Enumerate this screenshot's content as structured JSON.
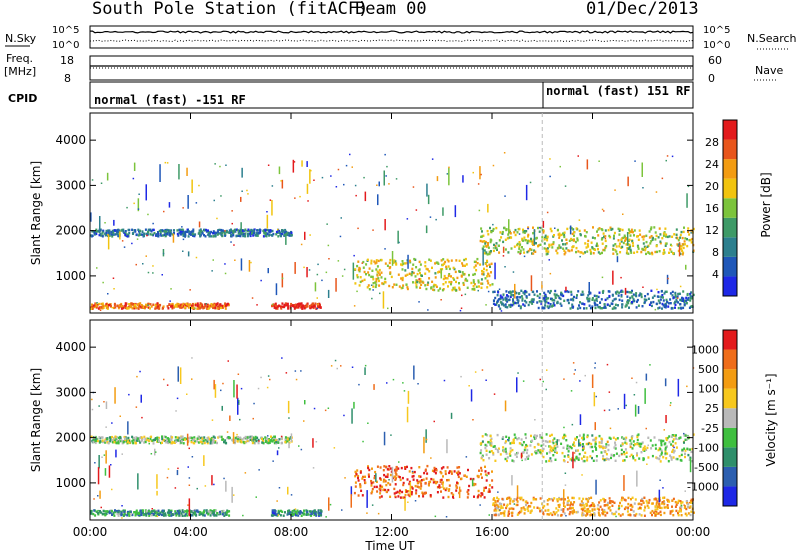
{
  "header": {
    "station": "South Pole Station (fitACF)",
    "beam": "Beam 00",
    "date": "01/Dec/2013"
  },
  "top_panels": {
    "nsky_label": "N.Sky",
    "nsearch_label": "N.Search",
    "count_ticks": [
      "10^5",
      "10^0"
    ],
    "freq_label_1": "Freq.",
    "freq_label_2": "[MHz]",
    "freq_ticks": [
      "18",
      "8"
    ],
    "nave_label": "Nave",
    "nave_ticks": [
      "60",
      "0"
    ],
    "cpid_label": "CPID",
    "cpid_segments": [
      {
        "label": "normal (fast) -151 RF",
        "start_hour": 0
      },
      {
        "label": "normal (fast) 151 RF",
        "start_hour": 18
      }
    ]
  },
  "chart_data": [
    {
      "type": "heatmap",
      "name": "power",
      "ylabel": "Slant Range [km]",
      "xlabel": "",
      "xlim": [
        0,
        24
      ],
      "ylim": [
        180,
        4600
      ],
      "yticks": [
        "1000",
        "2000",
        "3000",
        "4000"
      ],
      "colorbar": {
        "label": "Power [dB]",
        "ticks": [
          "4",
          "8",
          "12",
          "16",
          "20",
          "24",
          "28"
        ],
        "colors": [
          "#1e28e6",
          "#1f57b8",
          "#2c7f8e",
          "#3e9a67",
          "#7cc43c",
          "#f1c40f",
          "#f39c12",
          "#e8561c",
          "#e31a1c"
        ]
      },
      "echo_bands": [
        {
          "t0": 0.0,
          "t1": 5.5,
          "r0": 300,
          "r1": 420,
          "level": 0.8
        },
        {
          "t0": 7.2,
          "t1": 9.2,
          "r0": 300,
          "r1": 420,
          "level": 0.95
        },
        {
          "t0": 0.0,
          "t1": 8.0,
          "r0": 1900,
          "r1": 2050,
          "level": 0.25
        },
        {
          "t0": 10.5,
          "t1": 16.0,
          "r0": 700,
          "r1": 1400,
          "level": 0.6
        },
        {
          "t0": 15.5,
          "t1": 24.0,
          "r0": 1500,
          "r1": 2100,
          "level": 0.55
        },
        {
          "t0": 16.0,
          "t1": 24.0,
          "r0": 300,
          "r1": 700,
          "level": 0.25
        }
      ]
    },
    {
      "type": "heatmap",
      "name": "velocity",
      "ylabel": "Slant Range [km]",
      "xlabel": "Time UT",
      "xlim": [
        0,
        24
      ],
      "ylim": [
        180,
        4600
      ],
      "yticks": [
        "1000",
        "2000",
        "3000",
        "4000"
      ],
      "xticks": [
        "00:00",
        "04:00",
        "08:00",
        "12:00",
        "16:00",
        "20:00",
        "00:00"
      ],
      "colorbar": {
        "label": "Velocity [m s⁻¹]",
        "ticks": [
          "1000",
          "500",
          "100",
          "25",
          "-25",
          "-100",
          "-500",
          "-1000"
        ],
        "colors": [
          "#1e28e6",
          "#2c5fb0",
          "#2f8f6b",
          "#3fbf3f",
          "#b9b9b9",
          "#f7c81e",
          "#f39c12",
          "#ef6d1a",
          "#e31a1c"
        ]
      },
      "echo_bands": [
        {
          "t0": 0.0,
          "t1": 5.5,
          "r0": 300,
          "r1": 420,
          "level": 0.3
        },
        {
          "t0": 7.2,
          "t1": 9.2,
          "r0": 300,
          "r1": 420,
          "level": 0.25
        },
        {
          "t0": 0.0,
          "t1": 8.0,
          "r0": 1900,
          "r1": 2050,
          "level": 0.45
        },
        {
          "t0": 10.5,
          "t1": 16.0,
          "r0": 700,
          "r1": 1400,
          "level": 0.85
        },
        {
          "t0": 15.5,
          "t1": 24.0,
          "r0": 1500,
          "r1": 2100,
          "level": 0.5
        },
        {
          "t0": 16.0,
          "t1": 24.0,
          "r0": 300,
          "r1": 700,
          "level": 0.7
        }
      ]
    }
  ]
}
